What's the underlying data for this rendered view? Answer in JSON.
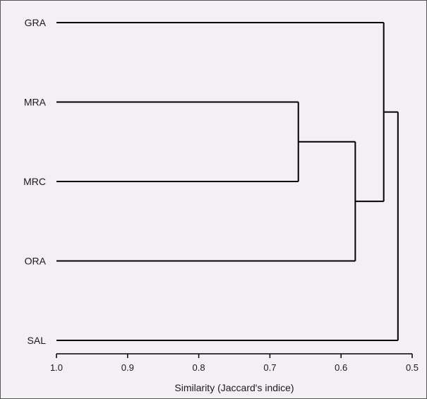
{
  "chart_data": {
    "type": "dendrogram",
    "leaves": [
      "GRA",
      "MRA",
      "MRC",
      "ORA",
      "SAL"
    ],
    "merges": [
      {
        "members": [
          "MRA",
          "MRC"
        ],
        "similarity": 0.66
      },
      {
        "members": [
          "MRA",
          "MRC",
          "ORA"
        ],
        "similarity": 0.58
      },
      {
        "members": [
          "GRA",
          "MRA",
          "MRC",
          "ORA"
        ],
        "similarity": 0.54
      },
      {
        "members": [
          "GRA",
          "MRA",
          "MRC",
          "ORA",
          "SAL"
        ],
        "similarity": 0.52
      }
    ],
    "xaxis": {
      "label": "Similarity (Jaccard's indice)",
      "ticks": [
        "1.0",
        "0.9",
        "0.8",
        "0.7",
        "0.6",
        "0.5"
      ],
      "range": [
        1.0,
        0.5
      ],
      "reversed": true
    },
    "colors": {
      "background": "#f3eff4",
      "line": "#000000",
      "border": "#555555"
    }
  }
}
